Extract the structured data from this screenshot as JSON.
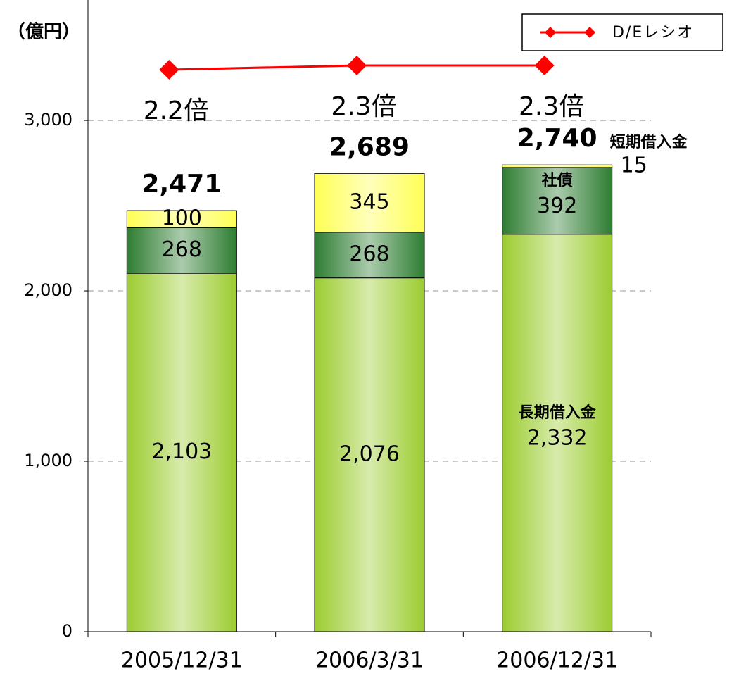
{
  "chart_data": {
    "type": "stacked_bar_line",
    "y_label": "（億円）",
    "categories": [
      "2005/12/31",
      "2006/3/31",
      "2006/12/31"
    ],
    "series": [
      {
        "name": "長期借入金",
        "color": "#9ccc30",
        "values": [
          2103,
          2076,
          2332
        ],
        "value_labels": [
          "2,103",
          "2,076",
          "2,332"
        ]
      },
      {
        "name": "社債",
        "color": "#2e7d32",
        "values": [
          268,
          268,
          392
        ]
      },
      {
        "name": "短期借入金",
        "color": "#ffff55",
        "values": [
          100,
          345,
          15
        ]
      },
      {
        "name": "D/Eレシオ",
        "color": "#ff0000",
        "type": "line",
        "axis": "y2",
        "values": [
          2.2,
          2.3,
          2.3
        ],
        "value_labels": [
          "2.2倍",
          "2.3倍",
          "2.3倍"
        ]
      }
    ],
    "totals": [
      2471,
      2689,
      2740
    ],
    "total_labels": [
      "2,471",
      "2,689",
      "2,740"
    ],
    "ylim": [
      0,
      3707
    ],
    "yticks": [
      0,
      {
        "value": 1000,
        "label": "1,000"
      },
      {
        "value": 2000,
        "label": "2,000"
      },
      {
        "value": 3000,
        "label": "3,000"
      }
    ],
    "y2lim": [
      -11.1,
      3.85
    ],
    "grid": true,
    "legend": "upper right"
  }
}
